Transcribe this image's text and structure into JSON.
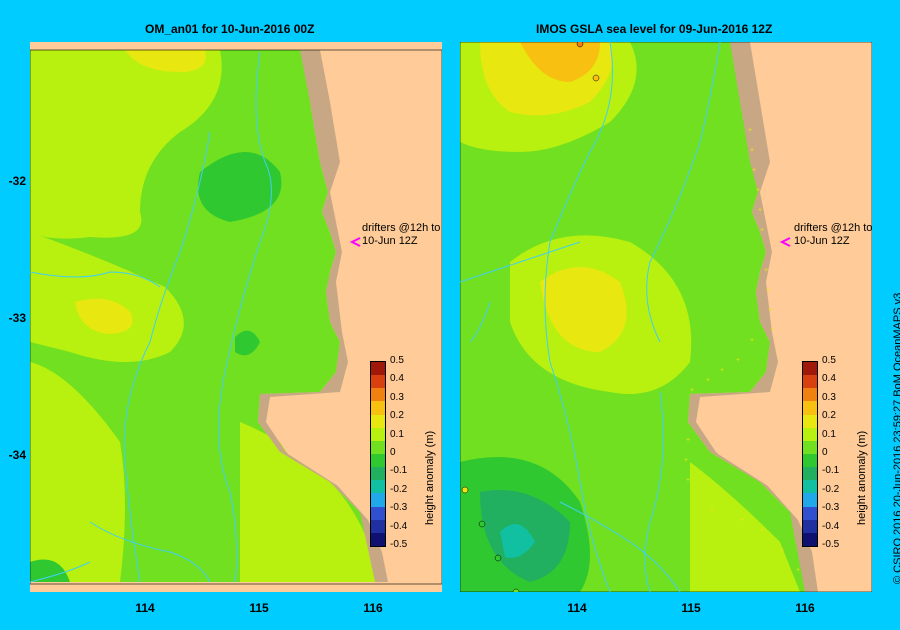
{
  "left_map": {
    "title": "OM_an01  for 10-Jun-2016 00Z",
    "drifter_note_line1": "drifters @12h to",
    "drifter_note_line2": "10-Jun 12Z"
  },
  "right_map": {
    "title": "IMOS GSLA sea level  for 09-Jun-2016 12Z",
    "drifter_note_line1": "drifters @12h to",
    "drifter_note_line2": "10-Jun 12Z"
  },
  "axes": {
    "y_ticks": [
      "-32",
      "-33",
      "-34"
    ],
    "x_ticks": [
      "114",
      "115",
      "116"
    ]
  },
  "colorbar": {
    "title": "height anomaly (m)",
    "labels": [
      "0.5",
      "0.4",
      "0.3",
      "0.2",
      "0.1",
      "0",
      "-0.1",
      "-0.2",
      "-0.3",
      "-0.4",
      "-0.5"
    ],
    "colors": [
      "#A0180A",
      "#D84010",
      "#F08010",
      "#F8C010",
      "#E8E810",
      "#B8F010",
      "#70E020",
      "#30C830",
      "#20B060",
      "#10C0A0",
      "#20A8E8",
      "#3050D0",
      "#2030A0",
      "#101070"
    ]
  },
  "credit": "© CSIRO 2016   20-Jun-2016 23:59:27 BoM OceanMAPS v3",
  "colors": {
    "background": "#00CCFF",
    "land": "#FFCC99",
    "shelf": "#C8A884",
    "rivers": "#40D0F0"
  }
}
